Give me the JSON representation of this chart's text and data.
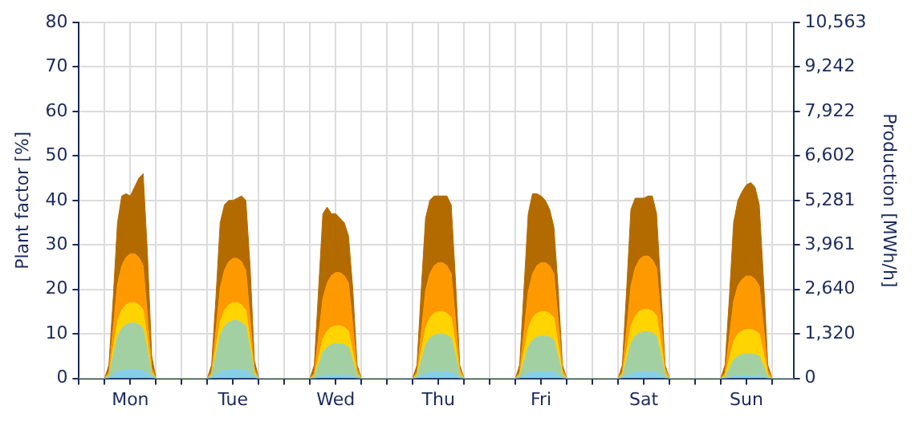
{
  "chart_data": {
    "type": "area",
    "stacked": true,
    "grid": true,
    "ylabel": "Plant factor [%]",
    "y2label": "Production [MWh/h]",
    "categories": [
      null,
      null,
      null,
      null,
      null,
      null,
      null,
      null,
      null,
      null,
      null,
      null,
      "Mon",
      null,
      null,
      null,
      null,
      null,
      null,
      null,
      null,
      null,
      null,
      null,
      null,
      null,
      null,
      null,
      null,
      null,
      null,
      null,
      null,
      null,
      null,
      null,
      "Tue",
      null,
      null,
      null,
      null,
      null,
      null,
      null,
      null,
      null,
      null,
      null,
      null,
      null,
      null,
      null,
      null,
      null,
      null,
      null,
      null,
      null,
      null,
      null,
      "Wed",
      null,
      null,
      null,
      null,
      null,
      null,
      null,
      null,
      null,
      null,
      null,
      null,
      null,
      null,
      null,
      null,
      null,
      null,
      null,
      null,
      null,
      null,
      null,
      "Thu",
      null,
      null,
      null,
      null,
      null,
      null,
      null,
      null,
      null,
      null,
      null,
      null,
      null,
      null,
      null,
      null,
      null,
      null,
      null,
      null,
      null,
      null,
      null,
      "Fri",
      null,
      null,
      null,
      null,
      null,
      null,
      null,
      null,
      null,
      null,
      null,
      null,
      null,
      null,
      null,
      null,
      null,
      null,
      null,
      null,
      null,
      null,
      null,
      "Sat",
      null,
      null,
      null,
      null,
      null,
      null,
      null,
      null,
      null,
      null,
      null,
      null,
      null,
      null,
      null,
      null,
      null,
      null,
      null,
      null,
      null,
      null,
      null,
      "Sun",
      null,
      null,
      null,
      null,
      null,
      null,
      null,
      null,
      null,
      null,
      null
    ],
    "ylim": [
      0,
      80
    ],
    "yticks": [
      0,
      10,
      20,
      30,
      40,
      50,
      60,
      70,
      80
    ],
    "y2lim": [
      0,
      10563
    ],
    "y2ticks": [
      0,
      {
        "value": 1320,
        "label": "1,320"
      },
      {
        "value": 2640,
        "label": "2,640"
      },
      {
        "value": 3961,
        "label": "3,961"
      },
      {
        "value": 5281,
        "label": "5,281"
      },
      {
        "value": 6602,
        "label": "6,602"
      },
      {
        "value": 7922,
        "label": "7,922"
      },
      {
        "value": 9242,
        "label": "9,242"
      },
      {
        "value": 10563,
        "label": "10,563"
      }
    ],
    "series": [
      {
        "color": "#87cee8",
        "values": [
          0,
          0,
          0,
          0,
          0,
          0,
          0,
          0.1,
          0.8,
          1.5,
          1.8,
          1.9,
          2,
          2,
          1.9,
          1.8,
          1,
          0.2,
          0,
          0,
          0,
          0,
          0,
          0,
          0,
          0,
          0,
          0,
          0,
          0,
          0,
          0.1,
          0.8,
          1.5,
          1.8,
          1.9,
          2,
          2,
          1.9,
          1.8,
          1,
          0.2,
          0,
          0,
          0,
          0,
          0,
          0,
          0,
          0,
          0,
          0,
          0,
          0,
          0,
          0,
          0.3,
          0.6,
          0.7,
          0.8,
          0.8,
          0.8,
          0.8,
          0.7,
          0.4,
          0.1,
          0,
          0,
          0,
          0,
          0,
          0,
          0,
          0,
          0,
          0,
          0,
          0,
          0,
          0.1,
          0.6,
          1.1,
          1.4,
          1.5,
          1.5,
          1.5,
          1.5,
          1.4,
          0.8,
          0.1,
          0,
          0,
          0,
          0,
          0,
          0,
          0,
          0,
          0,
          0,
          0,
          0,
          0,
          0.1,
          0.6,
          1.1,
          1.4,
          1.5,
          1.5,
          1.5,
          1.5,
          1.4,
          0.8,
          0.1,
          0,
          0,
          0,
          0,
          0,
          0,
          0,
          0,
          0,
          0,
          0,
          0,
          0,
          0.1,
          0.6,
          1.1,
          1.4,
          1.5,
          1.5,
          1.5,
          1.5,
          1.4,
          0.8,
          0.1,
          0,
          0,
          0,
          0,
          0,
          0,
          0,
          0,
          0,
          0,
          0,
          0,
          0,
          0,
          0.2,
          0.4,
          0.5,
          0.5,
          0.5,
          0.5,
          0.5,
          0.5,
          0.3,
          0,
          0,
          0,
          0,
          0,
          0,
          0
        ]
      },
      {
        "color": "#a2d0a2",
        "values": [
          0,
          0,
          0,
          0,
          0,
          0,
          0,
          0.5,
          4.2,
          7.9,
          9.5,
          10.2,
          10.5,
          10.5,
          10.2,
          9.5,
          5.3,
          0.8,
          0,
          0,
          0,
          0,
          0,
          0,
          0,
          0,
          0,
          0,
          0,
          0,
          0,
          0.6,
          4.4,
          8.3,
          9.9,
          10.7,
          11,
          11,
          10.7,
          9.9,
          5.5,
          0.9,
          0,
          0,
          0,
          0,
          0,
          0,
          0,
          0,
          0,
          0,
          0,
          0,
          0,
          0.4,
          2.8,
          5.3,
          6.3,
          6.8,
          7,
          7,
          6.8,
          6.3,
          3.5,
          0.6,
          0,
          0,
          0,
          0,
          0,
          0,
          0,
          0,
          0,
          0,
          0,
          0,
          0,
          0.4,
          3.4,
          6.4,
          7.7,
          8.2,
          8.5,
          8.5,
          8.2,
          7.7,
          4.3,
          0.7,
          0,
          0,
          0,
          0,
          0,
          0,
          0,
          0,
          0,
          0,
          0,
          0,
          0,
          0.4,
          3.2,
          6,
          7.2,
          7.8,
          8,
          8,
          7.8,
          7.2,
          4,
          0.6,
          0,
          0,
          0,
          0,
          0,
          0,
          0,
          0,
          0,
          0,
          0,
          0,
          0,
          0.5,
          3.6,
          6.8,
          8.1,
          8.7,
          9,
          9,
          8.7,
          8.1,
          4.5,
          0.7,
          0,
          0,
          0,
          0,
          0,
          0,
          0,
          0,
          0,
          0,
          0,
          0,
          0,
          0.3,
          2,
          3.8,
          4.5,
          4.9,
          5,
          5,
          4.9,
          4.5,
          2.5,
          0.4,
          0,
          0,
          0,
          0,
          0,
          0
        ]
      },
      {
        "color": "#ffd400",
        "values": [
          0,
          0,
          0,
          0,
          0,
          0,
          0,
          0.2,
          1.8,
          3.4,
          4.1,
          4.4,
          4.5,
          4.5,
          4.4,
          4.1,
          2.3,
          0.4,
          0,
          0,
          0,
          0,
          0,
          0,
          0,
          0,
          0,
          0,
          0,
          0,
          0,
          0.2,
          1.6,
          3,
          3.6,
          3.9,
          4,
          4,
          3.9,
          3.6,
          2,
          0.3,
          0,
          0,
          0,
          0,
          0,
          0,
          0,
          0,
          0,
          0,
          0,
          0,
          0,
          0.2,
          1.6,
          3,
          3.6,
          3.9,
          4,
          4,
          3.9,
          3.6,
          2,
          0.3,
          0,
          0,
          0,
          0,
          0,
          0,
          0,
          0,
          0,
          0,
          0,
          0,
          0,
          0.3,
          2,
          3.8,
          4.5,
          4.9,
          5,
          5,
          4.9,
          4.5,
          2.5,
          0.4,
          0,
          0,
          0,
          0,
          0,
          0,
          0,
          0,
          0,
          0,
          0,
          0,
          0,
          0.3,
          2.2,
          4.1,
          5,
          5.3,
          5.5,
          5.5,
          5.3,
          5,
          2.8,
          0.4,
          0,
          0,
          0,
          0,
          0,
          0,
          0,
          0,
          0,
          0,
          0,
          0,
          0,
          0.3,
          2,
          3.8,
          4.5,
          4.9,
          5,
          5,
          4.9,
          4.5,
          2.5,
          0.4,
          0,
          0,
          0,
          0,
          0,
          0,
          0,
          0,
          0,
          0,
          0,
          0,
          0,
          0.3,
          2.2,
          4.1,
          5,
          5.3,
          5.5,
          5.5,
          5.3,
          5,
          2.8,
          0.4,
          0,
          0,
          0,
          0,
          0,
          0
        ]
      },
      {
        "color": "#ff9900",
        "values": [
          0,
          0,
          0,
          0,
          0,
          0,
          0,
          0.6,
          4.4,
          8.3,
          9.9,
          10.7,
          11,
          11,
          10.7,
          9.9,
          5.5,
          0.9,
          0,
          0,
          0,
          0,
          0,
          0,
          0,
          0,
          0,
          0,
          0,
          0,
          0,
          0.5,
          4,
          7.5,
          9,
          9.7,
          10,
          10,
          9.7,
          9,
          5,
          0.8,
          0,
          0,
          0,
          0,
          0,
          0,
          0,
          0,
          0,
          0,
          0,
          0,
          0,
          0.6,
          4.8,
          9,
          10.8,
          11.6,
          12,
          12,
          11.6,
          10.8,
          6,
          1,
          0,
          0,
          0,
          0,
          0,
          0,
          0,
          0,
          0,
          0,
          0,
          0,
          0,
          0.6,
          4.4,
          8.3,
          9.9,
          10.7,
          11,
          11,
          10.7,
          9.9,
          5.5,
          0.9,
          0,
          0,
          0,
          0,
          0,
          0,
          0,
          0,
          0,
          0,
          0,
          0,
          0,
          0.6,
          4.4,
          8.3,
          9.9,
          10.7,
          11,
          11,
          10.7,
          9.9,
          5.5,
          0.9,
          0,
          0,
          0,
          0,
          0,
          0,
          0,
          0,
          0,
          0,
          0,
          0,
          0,
          0.6,
          4.8,
          9,
          10.8,
          11.6,
          12,
          12,
          11.6,
          10.8,
          6,
          1,
          0,
          0,
          0,
          0,
          0,
          0,
          0,
          0,
          0,
          0,
          0,
          0,
          0,
          0.6,
          4.8,
          9,
          10.8,
          11.6,
          12,
          12,
          11.6,
          10.8,
          6,
          1,
          0,
          0,
          0,
          0,
          0,
          0
        ]
      },
      {
        "color": "#b36b00",
        "values": [
          0,
          0,
          0,
          0,
          0,
          0,
          0,
          1.6,
          6.8,
          13.9,
          15.7,
          14.3,
          13,
          15,
          17.8,
          20.7,
          13.9,
          2.7,
          0,
          0,
          0,
          0,
          0,
          0,
          0,
          0,
          0,
          0,
          0,
          0,
          0,
          1.6,
          7.2,
          14.7,
          14.7,
          13.8,
          13,
          13.5,
          14.8,
          15.7,
          11.5,
          1.8,
          0,
          0,
          0,
          0,
          0,
          0,
          0,
          0,
          0,
          0,
          0,
          0,
          0,
          1.8,
          10.5,
          19.1,
          17.1,
          13.9,
          13.2,
          12.2,
          11.9,
          10.6,
          8.1,
          1,
          0,
          0,
          0,
          0,
          0,
          0,
          0,
          0,
          0,
          0,
          0,
          0,
          0,
          1.6,
          9.6,
          16.4,
          16.5,
          15.7,
          15,
          15,
          15.7,
          15.5,
          8.9,
          0.9,
          0,
          0,
          0,
          0,
          0,
          0,
          0,
          0,
          0,
          0,
          0,
          0,
          0,
          1.6,
          9.6,
          17.5,
          18,
          16.2,
          15,
          14,
          12.7,
          10.5,
          6.9,
          1,
          0,
          0,
          0,
          0,
          0,
          0,
          0,
          0,
          0,
          0,
          0,
          0,
          0,
          1.5,
          9,
          17.3,
          15.7,
          13.8,
          13,
          13.5,
          14.3,
          12.2,
          6.2,
          0.8,
          0,
          0,
          0,
          0,
          0,
          0,
          0,
          0,
          0,
          0,
          0,
          0,
          0,
          1.8,
          8.8,
          17.7,
          19.2,
          19.7,
          20.5,
          21,
          20.7,
          18.2,
          10.4,
          1.2,
          0,
          0,
          0,
          0,
          0,
          0
        ]
      }
    ]
  }
}
